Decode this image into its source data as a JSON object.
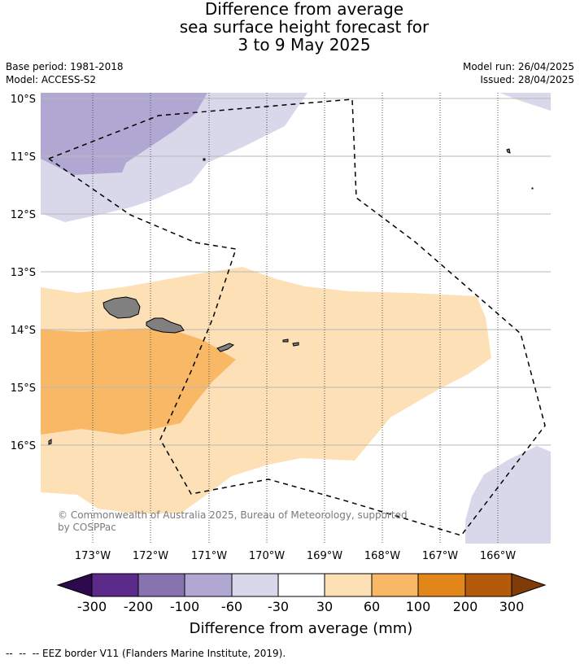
{
  "title": {
    "line1": "Difference from average",
    "line2": "sea surface height forecast for",
    "line3": "3 to 9 May 2025"
  },
  "meta": {
    "base_period": "Base period: 1981-2018",
    "model": "Model: ACCESS-S2",
    "model_run": "Model run: 26/04/2025",
    "issued": "Issued: 28/04/2025"
  },
  "map": {
    "lat_labels": [
      "10°S",
      "11°S",
      "12°S",
      "13°S",
      "14°S",
      "15°S",
      "16°S"
    ],
    "lon_labels": [
      "173°W",
      "172°W",
      "171°W",
      "170°W",
      "169°W",
      "168°W",
      "167°W",
      "166°W"
    ],
    "copyright": "© Commonwealth of Australia 2025, Bureau of Meteorology, supported by COSPPac",
    "land_color": "#808080",
    "eez_style": "dashed black line"
  },
  "colorbar": {
    "title": "Difference from average (mm)",
    "ticks": [
      "-300",
      "-200",
      "-100",
      "-60",
      "-30",
      "30",
      "60",
      "100",
      "200",
      "300"
    ],
    "colors": {
      "below_min": "#2d0a4e",
      "bins": [
        "#5b2a8b",
        "#8673b0",
        "#b0a8d2",
        "#d8d8ea",
        "#ffffff",
        "#fde0b6",
        "#f9b866",
        "#e3861a",
        "#b35a0b"
      ],
      "above_max": "#7f3b08"
    }
  },
  "footer": "--  --  -- EEZ border V11 (Flanders Marine Institute, 2019)."
}
